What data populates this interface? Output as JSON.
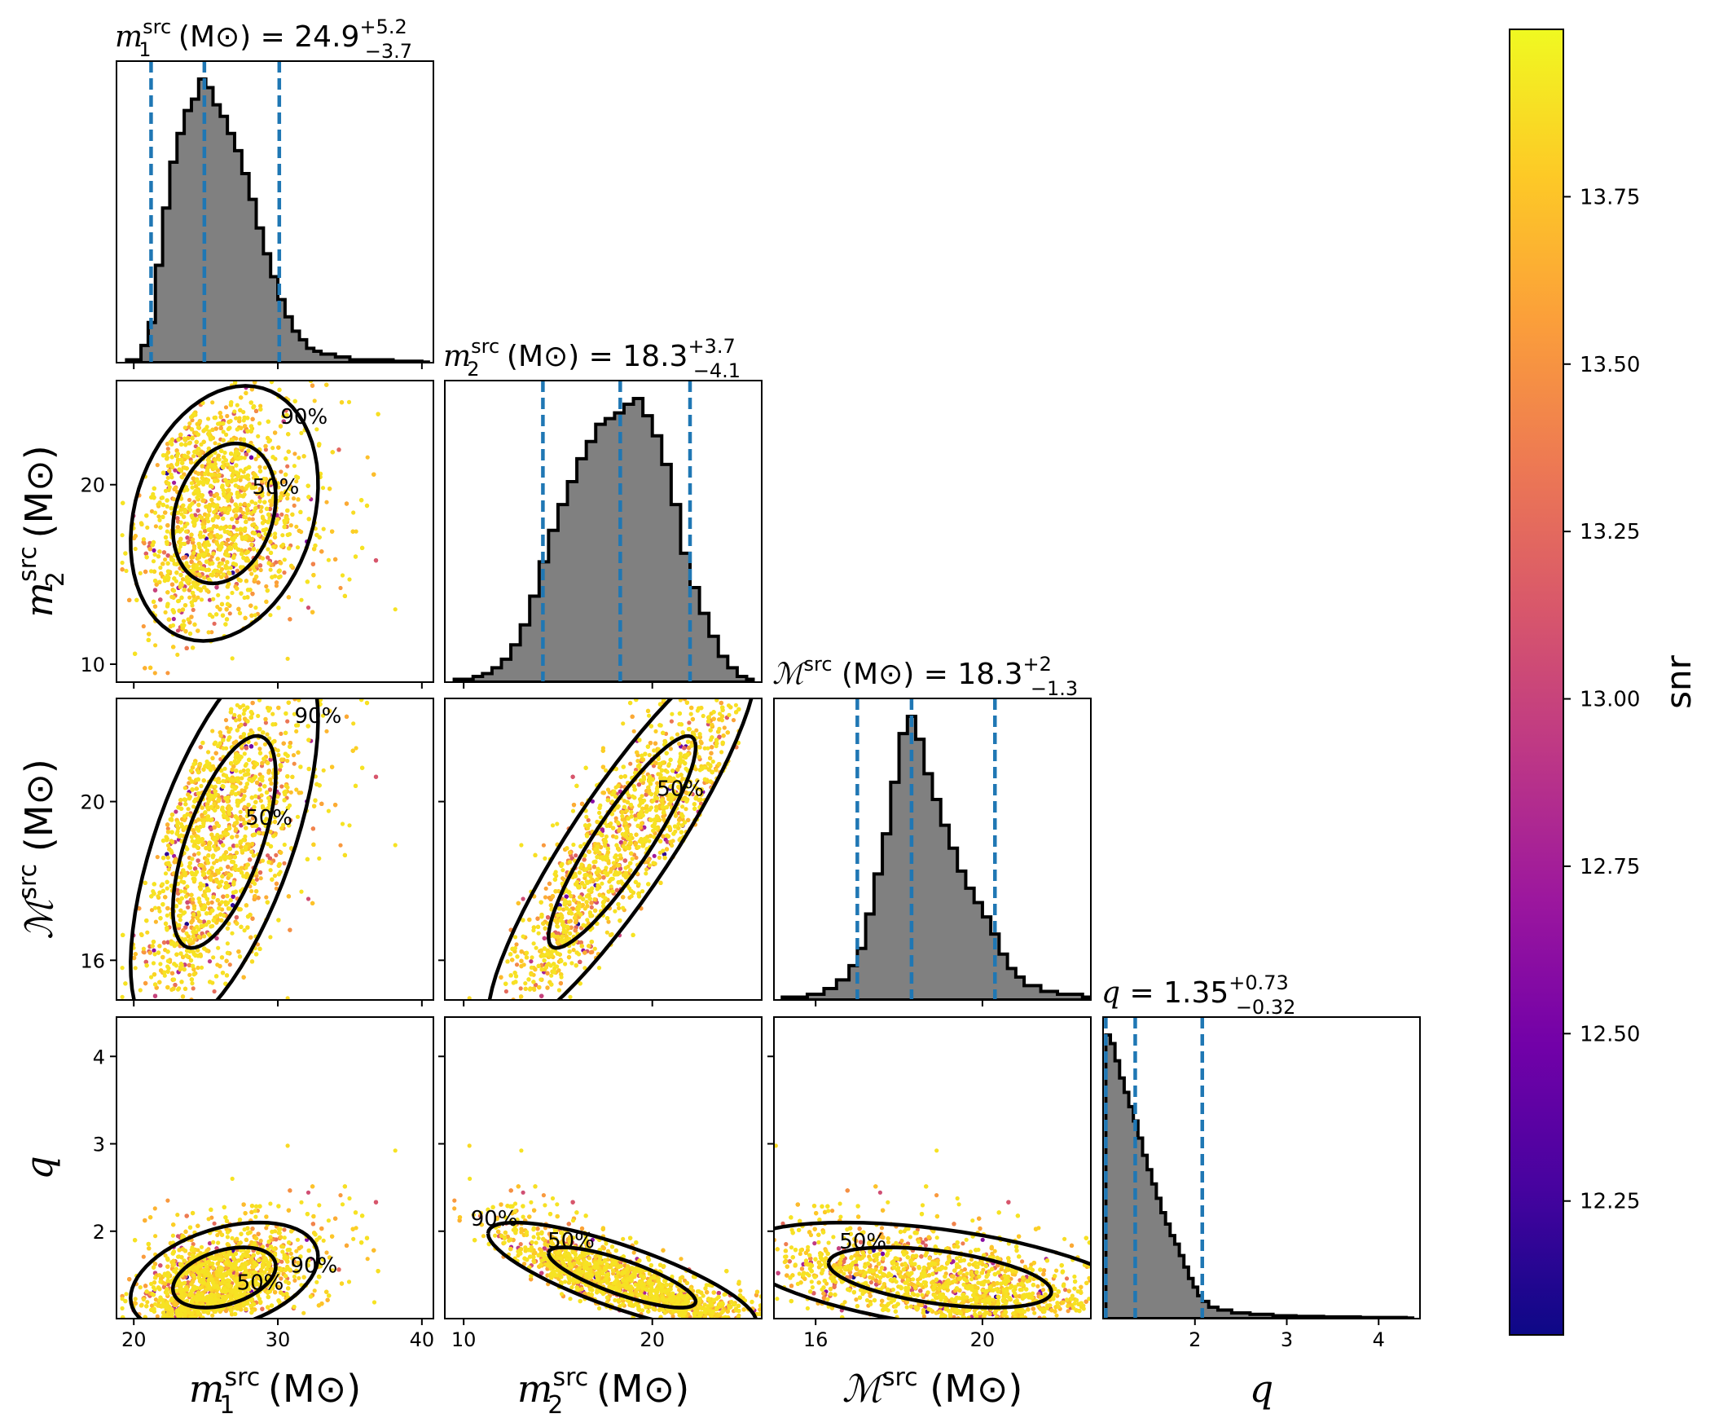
{
  "chart_data": {
    "type": "corner",
    "parameters": [
      {
        "key": "m1",
        "label_sym": "m",
        "label_sub": "1",
        "label_sup": "src",
        "label_unit": "(M⊙)",
        "range": [
          18.8,
          40.8
        ],
        "ticks": [
          20,
          30,
          40
        ],
        "median": 24.9,
        "plus": "+5.2",
        "minus": "−3.7",
        "lo": 21.2,
        "hi": 30.1,
        "title_value": "24.9"
      },
      {
        "key": "m2",
        "label_sym": "m",
        "label_sub": "2",
        "label_sup": "src",
        "label_unit": "(M⊙)",
        "range": [
          9.0,
          25.8
        ],
        "ticks": [
          10,
          20
        ],
        "median": 18.3,
        "plus": "+3.7",
        "minus": "−4.1",
        "lo": 14.2,
        "hi": 22.0,
        "title_value": "18.3"
      },
      {
        "key": "mc",
        "label_sym": "ℳ",
        "label_sub": "",
        "label_sup": "src",
        "label_unit": "(M⊙)",
        "range": [
          15.0,
          22.6
        ],
        "ticks": [
          16,
          20
        ],
        "median": 18.3,
        "plus": "+2",
        "minus": "−1.3",
        "lo": 17.0,
        "hi": 20.3,
        "title_value": "18.3"
      },
      {
        "key": "q",
        "label_sym": "q",
        "label_sub": "",
        "label_sup": "",
        "label_unit": "",
        "range": [
          1.0,
          4.45
        ],
        "ticks": [
          2,
          3,
          4
        ],
        "ticks_y": [
          2,
          3,
          4
        ],
        "median": 1.35,
        "plus": "+0.73",
        "minus": "−0.32",
        "lo": 1.03,
        "hi": 2.08,
        "title_value": "1.35"
      }
    ],
    "histograms": {
      "m1": {
        "x": [
          19.5,
          20.5,
          21.0,
          21.5,
          22.0,
          22.5,
          23.0,
          23.5,
          24.0,
          24.5,
          25.0,
          25.5,
          26.0,
          26.5,
          27.0,
          27.5,
          28.0,
          28.5,
          29.0,
          29.5,
          30.0,
          30.5,
          31.0,
          31.5,
          32.0,
          32.5,
          33.0,
          34.0,
          35.0,
          36.0,
          38.0,
          40.0
        ],
        "y": [
          0.01,
          0.06,
          0.14,
          0.34,
          0.54,
          0.7,
          0.8,
          0.88,
          0.92,
          0.99,
          0.96,
          0.9,
          0.86,
          0.8,
          0.74,
          0.66,
          0.57,
          0.47,
          0.38,
          0.3,
          0.22,
          0.16,
          0.11,
          0.08,
          0.05,
          0.04,
          0.03,
          0.02,
          0.01,
          0.01,
          0.005,
          0.002
        ]
      },
      "m2": {
        "x": [
          9.5,
          10.5,
          11.0,
          11.5,
          12.0,
          12.5,
          13.0,
          13.5,
          14.0,
          14.5,
          15.0,
          15.5,
          16.0,
          16.5,
          17.0,
          17.5,
          18.0,
          18.5,
          19.0,
          19.5,
          20.0,
          20.5,
          21.0,
          21.5,
          22.0,
          22.5,
          23.0,
          23.5,
          24.0,
          24.5,
          25.0
        ],
        "y": [
          0.01,
          0.02,
          0.03,
          0.05,
          0.08,
          0.13,
          0.2,
          0.3,
          0.42,
          0.53,
          0.62,
          0.7,
          0.78,
          0.84,
          0.9,
          0.92,
          0.94,
          0.97,
          0.99,
          0.93,
          0.86,
          0.76,
          0.62,
          0.45,
          0.33,
          0.24,
          0.16,
          0.09,
          0.05,
          0.02,
          0.01
        ]
      },
      "mc": {
        "x": [
          15.2,
          15.8,
          16.2,
          16.5,
          16.8,
          17.0,
          17.2,
          17.4,
          17.6,
          17.8,
          18.0,
          18.2,
          18.4,
          18.6,
          18.8,
          19.0,
          19.2,
          19.4,
          19.6,
          19.8,
          20.0,
          20.2,
          20.4,
          20.6,
          20.8,
          21.0,
          21.4,
          21.8,
          22.4
        ],
        "y": [
          0.01,
          0.02,
          0.04,
          0.07,
          0.12,
          0.18,
          0.3,
          0.44,
          0.58,
          0.76,
          0.93,
          0.99,
          0.91,
          0.79,
          0.7,
          0.61,
          0.53,
          0.45,
          0.39,
          0.34,
          0.29,
          0.23,
          0.16,
          0.11,
          0.08,
          0.05,
          0.03,
          0.02,
          0.01
        ]
      },
      "q": {
        "x": [
          1.03,
          1.08,
          1.13,
          1.18,
          1.23,
          1.28,
          1.33,
          1.38,
          1.43,
          1.48,
          1.53,
          1.58,
          1.63,
          1.68,
          1.73,
          1.78,
          1.83,
          1.88,
          1.93,
          1.98,
          2.03,
          2.08,
          2.15,
          2.25,
          2.4,
          2.6,
          2.85,
          3.1,
          3.4,
          3.8,
          4.3
        ],
        "y": [
          0.99,
          0.96,
          0.9,
          0.84,
          0.79,
          0.74,
          0.69,
          0.63,
          0.57,
          0.52,
          0.47,
          0.42,
          0.37,
          0.33,
          0.29,
          0.26,
          0.22,
          0.18,
          0.14,
          0.11,
          0.08,
          0.06,
          0.04,
          0.03,
          0.02,
          0.015,
          0.01,
          0.008,
          0.006,
          0.004,
          0.002
        ]
      }
    },
    "colorbar": {
      "label": "snr",
      "min": 12.05,
      "max": 14.0,
      "ticks": [
        "12.25",
        "12.50",
        "12.75",
        "13.00",
        "13.25",
        "13.50",
        "13.75"
      ],
      "colormap": [
        "#0d0887",
        "#46039f",
        "#7201a8",
        "#9c179e",
        "#bd3786",
        "#d8576b",
        "#ed7953",
        "#fb9f3a",
        "#fdca26",
        "#f0f921"
      ]
    },
    "contour_levels": [
      "50%",
      "90%"
    ],
    "colors": {
      "hist_fill": "#808080",
      "hist_edge": "#000000",
      "quantile_line": "#1f77b4",
      "contour": "#000000"
    }
  }
}
